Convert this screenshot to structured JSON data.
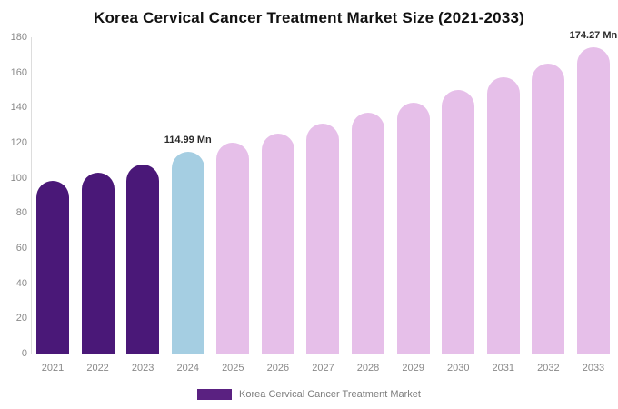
{
  "title": "Korea Cervical Cancer Treatment Market Size (2021-2033)",
  "legend": {
    "label": "Korea Cervical Cancer Treatment Market",
    "swatch_color": "#5A2181"
  },
  "colors": {
    "historical_bar": "#4A1878",
    "highlight_bar": "#A5CEE2",
    "forecast_bar": "#E6BFE9",
    "axis_line": "#DDDDDD",
    "tick_text": "#8A8A8A",
    "value_label_text": "#2B2B2B"
  },
  "chart_data": {
    "type": "bar",
    "title": "Korea Cervical Cancer Treatment Market Size (2021-2033)",
    "categories": [
      "2021",
      "2022",
      "2023",
      "2024",
      "2025",
      "2026",
      "2027",
      "2028",
      "2029",
      "2030",
      "2031",
      "2032",
      "2033"
    ],
    "values": [
      98.5,
      103,
      107.5,
      114.99,
      120,
      125,
      131,
      137,
      143,
      150,
      157,
      165,
      174.27
    ],
    "bar_colors": [
      "#4A1878",
      "#4A1878",
      "#4A1878",
      "#A5CEE2",
      "#E6BFE9",
      "#E6BFE9",
      "#E6BFE9",
      "#E6BFE9",
      "#E6BFE9",
      "#E6BFE9",
      "#E6BFE9",
      "#E6BFE9",
      "#E6BFE9"
    ],
    "value_labels": [
      {
        "category": "2024",
        "text": "114.99 Mn"
      },
      {
        "category": "2033",
        "text": "174.27 Mn"
      }
    ],
    "xlabel": "",
    "ylabel": "",
    "ylim": [
      0,
      180
    ],
    "yticks": [
      "0",
      "20",
      "40",
      "60",
      "80",
      "100",
      "120",
      "140",
      "160",
      "180"
    ],
    "grid": false,
    "legend_position": "bottom",
    "legend_entries": [
      "Korea Cervical Cancer Treatment Market"
    ]
  }
}
